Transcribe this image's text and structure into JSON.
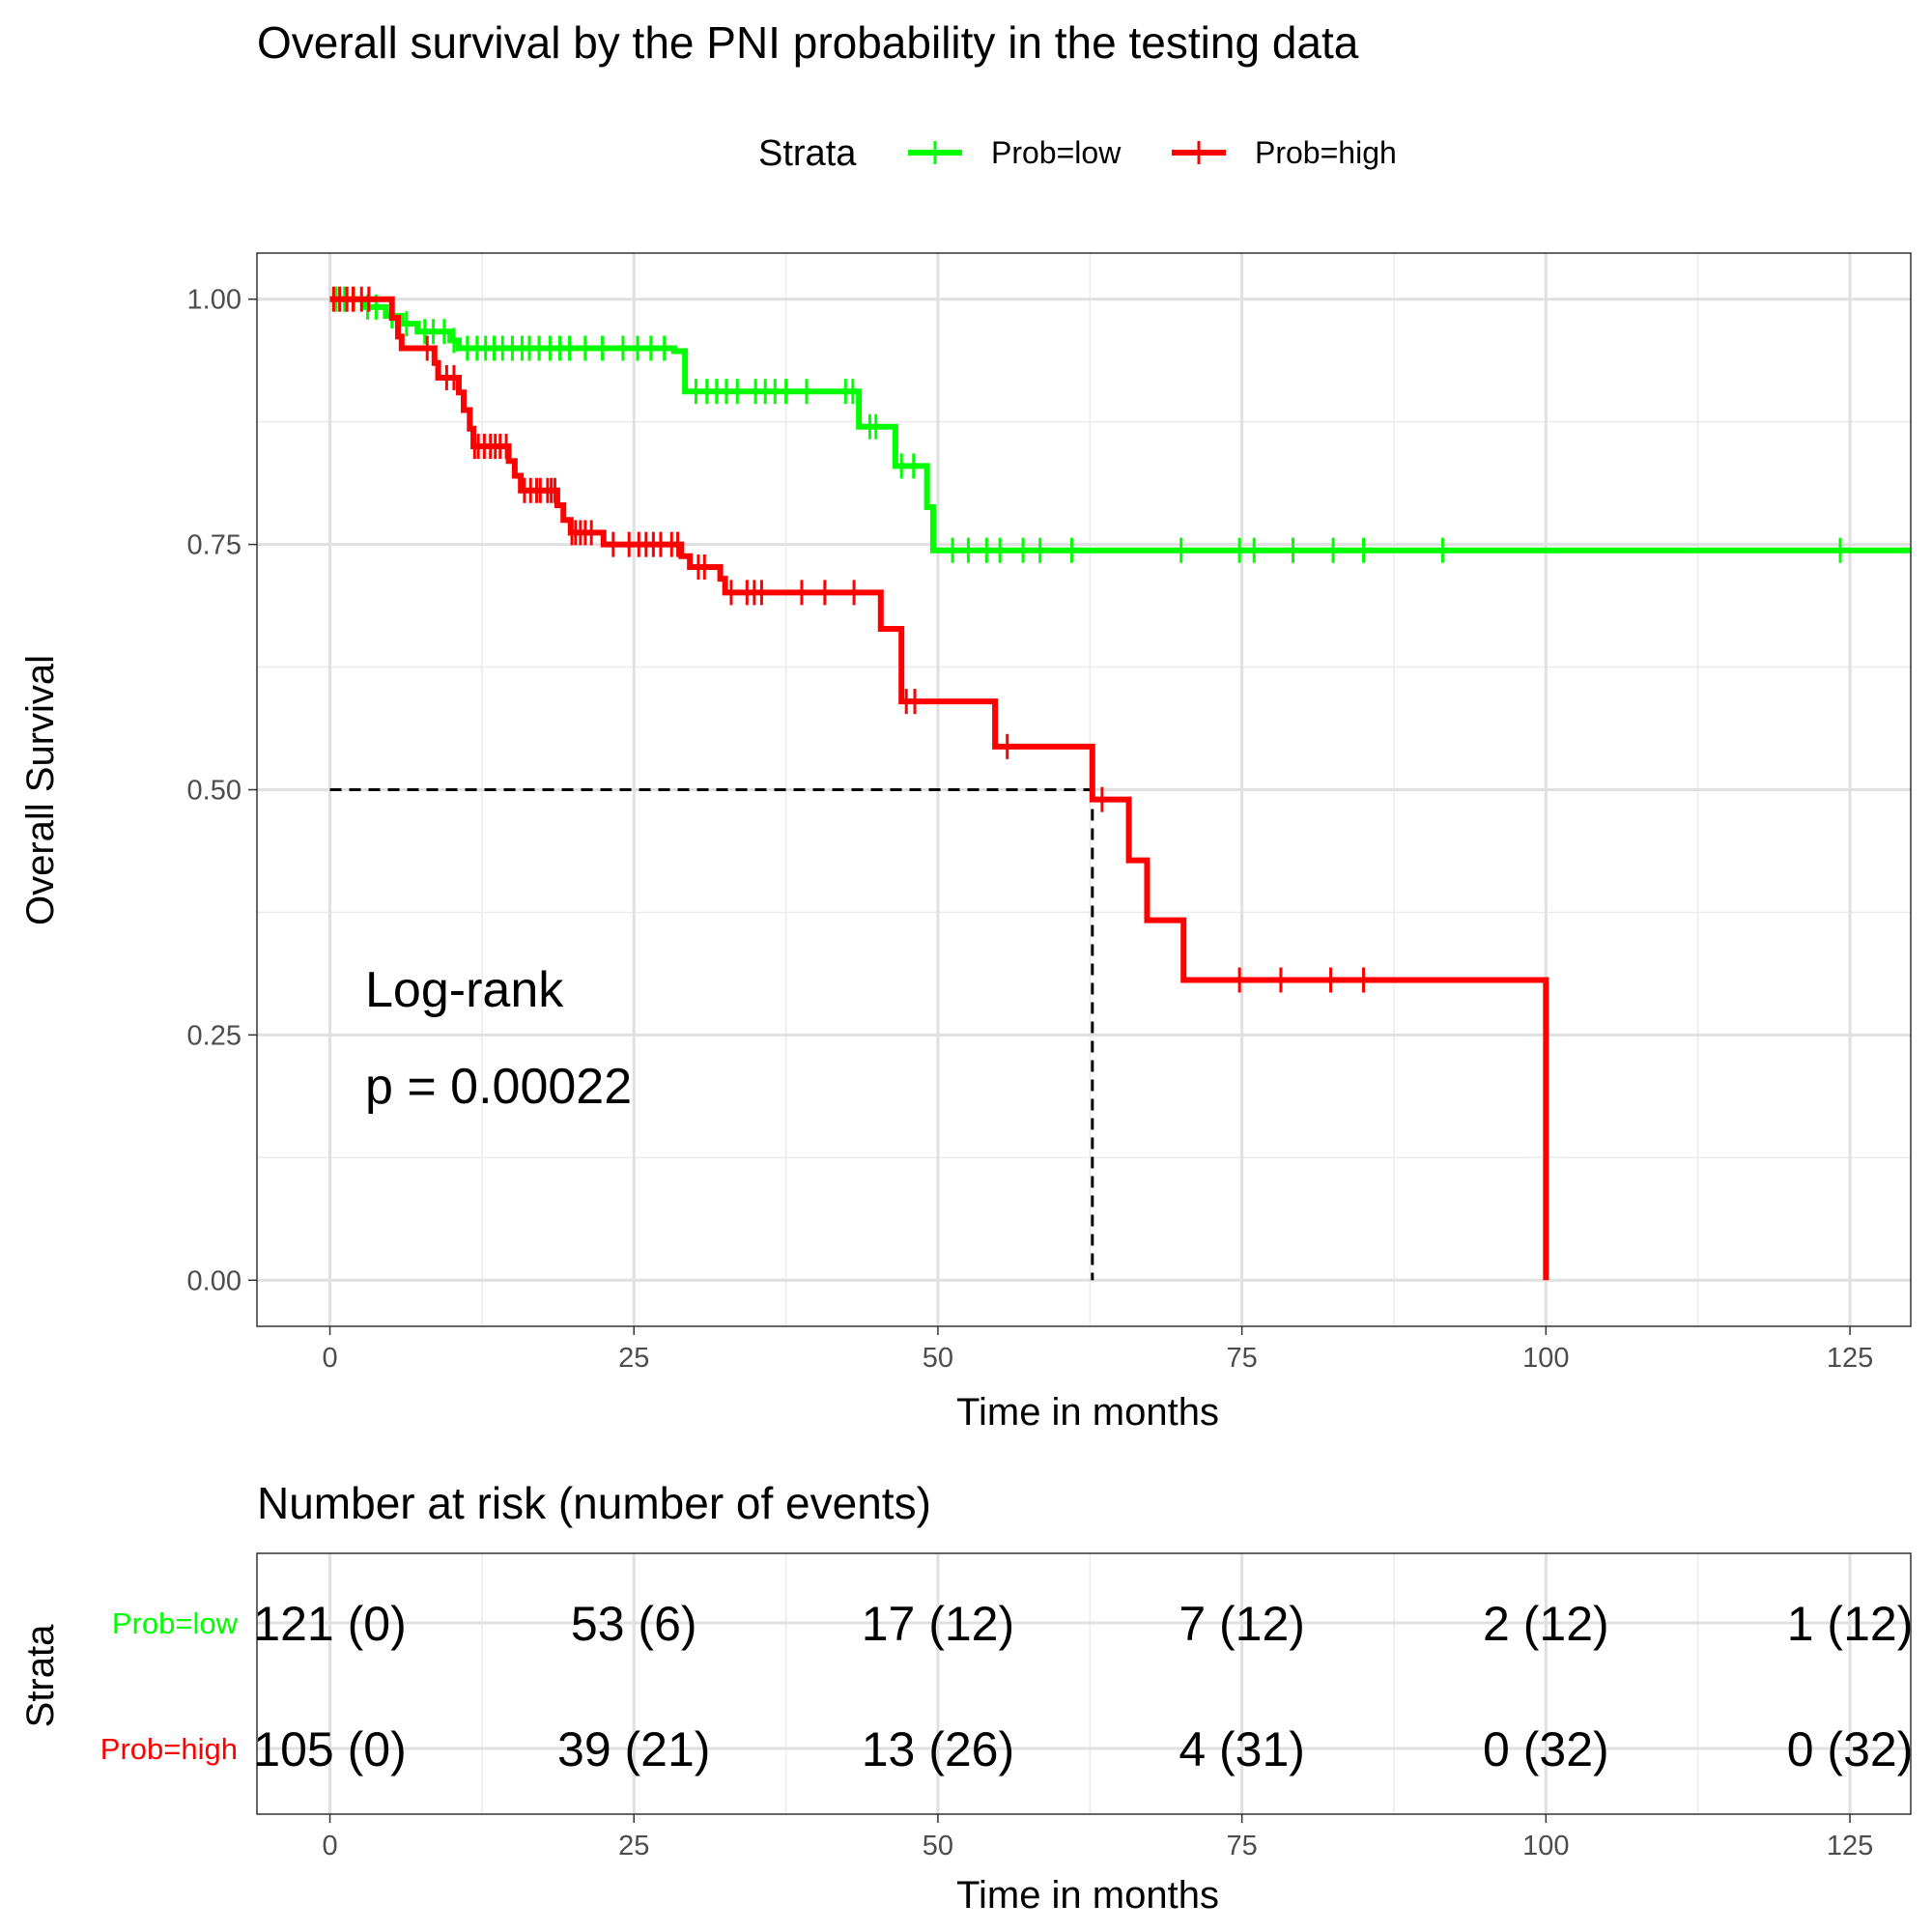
{
  "title": "Overall survival by the PNI probability in the testing data",
  "legend": {
    "title": "Strata",
    "items": [
      {
        "label": "Prob=low",
        "color": "#00FF00"
      },
      {
        "label": "Prob=high",
        "color": "#FF0000"
      }
    ],
    "placement": "top"
  },
  "annotation": {
    "line1": "Log-rank",
    "line2": "p = 0.00022"
  },
  "risk_table": {
    "title": "Number at risk (number of events)",
    "ylabel": "Strata",
    "xlabel": "Time in months",
    "rows": [
      {
        "label": "Prob=low",
        "color": "#00FF00",
        "cells": [
          "121 (0)",
          "53 (6)",
          "17 (12)",
          "7 (12)",
          "2 (12)",
          "1 (12)"
        ]
      },
      {
        "label": "Prob=high",
        "color": "#FF0000",
        "cells": [
          "105 (0)",
          "39 (21)",
          "13 (26)",
          "4 (31)",
          "0 (32)",
          "0 (32)"
        ]
      }
    ],
    "times": [
      0,
      25,
      50,
      75,
      100,
      125
    ]
  },
  "chart_data": {
    "type": "line",
    "title": "Overall survival by the PNI probability in the testing data",
    "xlabel": "Time in months",
    "ylabel": "Overall Survival",
    "xlim": [
      -6,
      130
    ],
    "ylim": [
      -0.047,
      1.047
    ],
    "xticks": [
      0,
      25,
      50,
      75,
      100,
      125
    ],
    "xtick_labels": [
      "0",
      "25",
      "50",
      "75",
      "100",
      "125"
    ],
    "yticks": [
      0,
      0.25,
      0.5,
      0.75,
      1.0
    ],
    "ytick_labels": [
      "0.00",
      "0.25",
      "0.50",
      "0.75",
      "1.00"
    ],
    "grid": true,
    "median_line": {
      "x": 62.7,
      "y": 0.5
    },
    "series": [
      {
        "name": "Prob=low",
        "color": "#00FF00",
        "steps": [
          [
            0,
            1.0
          ],
          [
            2.8,
            0.992
          ],
          [
            4.6,
            0.983
          ],
          [
            5.9,
            0.975
          ],
          [
            7.2,
            0.967
          ],
          [
            9.9,
            0.958
          ],
          [
            10.6,
            0.95
          ],
          [
            28.3,
            0.947
          ],
          [
            29.2,
            0.906
          ],
          [
            43.5,
            0.87
          ],
          [
            46.5,
            0.83
          ],
          [
            49.1,
            0.788
          ],
          [
            49.6,
            0.744
          ],
          [
            130,
            0.744
          ]
        ],
        "censor_times": [
          0.5,
          1.2,
          2.0,
          3.1,
          3.8,
          5.1,
          6.3,
          7.8,
          8.5,
          9.4,
          10.2,
          11.3,
          12.1,
          12.8,
          13.5,
          14.2,
          15.0,
          15.8,
          16.4,
          17.2,
          18.1,
          18.9,
          19.7,
          21.0,
          22.4,
          24.1,
          25.3,
          26.4,
          27.5,
          30.1,
          31.0,
          31.8,
          32.6,
          33.5,
          35.0,
          35.8,
          36.6,
          37.5,
          39.2,
          42.4,
          43.0,
          44.4,
          44.9,
          47.0,
          48.0,
          51.2,
          52.5,
          54.0,
          55.1,
          57.0,
          58.4,
          61.0,
          70.0,
          74.8,
          76.0,
          79.2,
          82.5,
          85.0,
          91.5,
          124.2
        ]
      },
      {
        "name": "Prob=high",
        "color": "#FF0000",
        "steps": [
          [
            0,
            1.0
          ],
          [
            5.1,
            0.981
          ],
          [
            5.6,
            0.962
          ],
          [
            5.9,
            0.95
          ],
          [
            8.6,
            0.935
          ],
          [
            8.9,
            0.92
          ],
          [
            10.6,
            0.905
          ],
          [
            11.0,
            0.887
          ],
          [
            11.5,
            0.868
          ],
          [
            11.8,
            0.85
          ],
          [
            14.7,
            0.835
          ],
          [
            15.2,
            0.82
          ],
          [
            15.7,
            0.805
          ],
          [
            18.7,
            0.79
          ],
          [
            19.2,
            0.775
          ],
          [
            19.8,
            0.762
          ],
          [
            22.5,
            0.75
          ],
          [
            28.9,
            0.738
          ],
          [
            29.6,
            0.727
          ],
          [
            32.1,
            0.715
          ],
          [
            32.5,
            0.701
          ],
          [
            45.3,
            0.664
          ],
          [
            47.0,
            0.59
          ],
          [
            54.7,
            0.544
          ],
          [
            62.7,
            0.49
          ],
          [
            65.7,
            0.428
          ],
          [
            67.2,
            0.367
          ],
          [
            70.2,
            0.306
          ],
          [
            100,
            0.0
          ]
        ],
        "censor_times": [
          0.3,
          0.8,
          1.4,
          1.9,
          2.6,
          3.2,
          8.0,
          9.6,
          10.2,
          11.9,
          12.2,
          12.7,
          13.2,
          13.6,
          14.0,
          14.5,
          16.0,
          16.5,
          17.0,
          17.3,
          17.9,
          18.2,
          18.5,
          19.9,
          20.2,
          20.6,
          21.0,
          21.5,
          23.3,
          24.6,
          25.4,
          26.0,
          26.6,
          27.2,
          28.1,
          28.6,
          30.3,
          30.8,
          33.0,
          34.3,
          34.9,
          35.5,
          38.8,
          40.7,
          43.1,
          47.4,
          48.1,
          55.7,
          63.5,
          74.8,
          78.2,
          82.3,
          85.0
        ]
      }
    ]
  }
}
